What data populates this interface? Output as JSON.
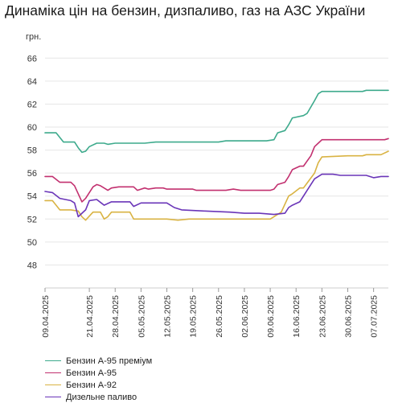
{
  "chart_data": {
    "type": "line",
    "title": "Динаміка цін на бензин, дизпаливо, газ на АЗС України",
    "ylabel": "грн.",
    "xlabel": "",
    "ylim": [
      46,
      67
    ],
    "yticks": [
      48,
      50,
      52,
      54,
      56,
      58,
      60,
      62,
      64,
      66
    ],
    "xlim": [
      "2025-04-09",
      "2025-07-11"
    ],
    "xticks": [
      "09.04.2025",
      "21.04.2025",
      "28.04.2025",
      "05.05.2025",
      "12.05.2025",
      "19.05.2025",
      "26.05.2025",
      "02.06.2025",
      "09.06.2025",
      "16.06.2025",
      "23.06.2025",
      "30.06.2025",
      "07.07.2025"
    ],
    "grid": "horizontal",
    "legend_position": "bottom-left",
    "series": [
      {
        "name": "Бензин А-95 преміум",
        "color": "#3daa8c",
        "points": [
          [
            "2025-04-09",
            59.5
          ],
          [
            "2025-04-12",
            59.5
          ],
          [
            "2025-04-14",
            58.7
          ],
          [
            "2025-04-17",
            58.7
          ],
          [
            "2025-04-18",
            58.2
          ],
          [
            "2025-04-19",
            57.8
          ],
          [
            "2025-04-20",
            57.9
          ],
          [
            "2025-04-21",
            58.3
          ],
          [
            "2025-04-23",
            58.6
          ],
          [
            "2025-04-25",
            58.6
          ],
          [
            "2025-04-26",
            58.5
          ],
          [
            "2025-04-28",
            58.6
          ],
          [
            "2025-05-04",
            58.6
          ],
          [
            "2025-05-06",
            58.6
          ],
          [
            "2025-05-09",
            58.7
          ],
          [
            "2025-05-12",
            58.7
          ],
          [
            "2025-05-19",
            58.7
          ],
          [
            "2025-05-26",
            58.7
          ],
          [
            "2025-05-28",
            58.8
          ],
          [
            "2025-06-04",
            58.8
          ],
          [
            "2025-06-08",
            58.8
          ],
          [
            "2025-06-10",
            58.9
          ],
          [
            "2025-06-11",
            59.5
          ],
          [
            "2025-06-13",
            59.7
          ],
          [
            "2025-06-14",
            60.2
          ],
          [
            "2025-06-15",
            60.8
          ],
          [
            "2025-06-18",
            61.0
          ],
          [
            "2025-06-19",
            61.2
          ],
          [
            "2025-06-21",
            62.3
          ],
          [
            "2025-06-22",
            62.9
          ],
          [
            "2025-06-23",
            63.1
          ],
          [
            "2025-06-30",
            63.1
          ],
          [
            "2025-07-04",
            63.1
          ],
          [
            "2025-07-05",
            63.2
          ],
          [
            "2025-07-11",
            63.2
          ]
        ]
      },
      {
        "name": "Бензин А-95",
        "color": "#c2306f",
        "points": [
          [
            "2025-04-09",
            55.7
          ],
          [
            "2025-04-11",
            55.7
          ],
          [
            "2025-04-13",
            55.2
          ],
          [
            "2025-04-16",
            55.2
          ],
          [
            "2025-04-17",
            54.9
          ],
          [
            "2025-04-18",
            54.2
          ],
          [
            "2025-04-19",
            53.5
          ],
          [
            "2025-04-20",
            53.8
          ],
          [
            "2025-04-22",
            54.8
          ],
          [
            "2025-04-23",
            55.0
          ],
          [
            "2025-04-24",
            54.9
          ],
          [
            "2025-04-26",
            54.5
          ],
          [
            "2025-04-27",
            54.7
          ],
          [
            "2025-04-29",
            54.8
          ],
          [
            "2025-05-03",
            54.8
          ],
          [
            "2025-05-04",
            54.5
          ],
          [
            "2025-05-06",
            54.7
          ],
          [
            "2025-05-07",
            54.6
          ],
          [
            "2025-05-09",
            54.7
          ],
          [
            "2025-05-11",
            54.7
          ],
          [
            "2025-05-12",
            54.6
          ],
          [
            "2025-05-19",
            54.6
          ],
          [
            "2025-05-20",
            54.5
          ],
          [
            "2025-05-28",
            54.5
          ],
          [
            "2025-05-30",
            54.6
          ],
          [
            "2025-06-01",
            54.5
          ],
          [
            "2025-06-09",
            54.5
          ],
          [
            "2025-06-10",
            54.6
          ],
          [
            "2025-06-11",
            55.0
          ],
          [
            "2025-06-13",
            55.2
          ],
          [
            "2025-06-14",
            55.7
          ],
          [
            "2025-06-15",
            56.3
          ],
          [
            "2025-06-17",
            56.6
          ],
          [
            "2025-06-18",
            56.6
          ],
          [
            "2025-06-20",
            57.5
          ],
          [
            "2025-06-21",
            58.3
          ],
          [
            "2025-06-22",
            58.6
          ],
          [
            "2025-06-23",
            58.9
          ],
          [
            "2025-06-30",
            58.9
          ],
          [
            "2025-07-10",
            58.9
          ],
          [
            "2025-07-11",
            59.0
          ]
        ]
      },
      {
        "name": "Бензин А-92",
        "color": "#d9b343",
        "points": [
          [
            "2025-04-09",
            53.6
          ],
          [
            "2025-04-11",
            53.6
          ],
          [
            "2025-04-13",
            52.8
          ],
          [
            "2025-04-16",
            52.8
          ],
          [
            "2025-04-18",
            52.7
          ],
          [
            "2025-04-19",
            52.2
          ],
          [
            "2025-04-20",
            51.9
          ],
          [
            "2025-04-22",
            52.6
          ],
          [
            "2025-04-24",
            52.6
          ],
          [
            "2025-04-25",
            52.0
          ],
          [
            "2025-04-26",
            52.2
          ],
          [
            "2025-04-27",
            52.6
          ],
          [
            "2025-04-29",
            52.6
          ],
          [
            "2025-05-02",
            52.6
          ],
          [
            "2025-05-03",
            52.0
          ],
          [
            "2025-05-05",
            52.0
          ],
          [
            "2025-05-12",
            52.0
          ],
          [
            "2025-05-15",
            51.9
          ],
          [
            "2025-05-18",
            52.0
          ],
          [
            "2025-05-26",
            52.0
          ],
          [
            "2025-06-09",
            52.0
          ],
          [
            "2025-06-10",
            52.2
          ],
          [
            "2025-06-12",
            52.6
          ],
          [
            "2025-06-14",
            54.0
          ],
          [
            "2025-06-15",
            54.2
          ],
          [
            "2025-06-17",
            54.7
          ],
          [
            "2025-06-18",
            54.7
          ],
          [
            "2025-06-21",
            56.0
          ],
          [
            "2025-06-22",
            56.9
          ],
          [
            "2025-06-23",
            57.4
          ],
          [
            "2025-06-30",
            57.5
          ],
          [
            "2025-07-04",
            57.5
          ],
          [
            "2025-07-05",
            57.6
          ],
          [
            "2025-07-09",
            57.6
          ],
          [
            "2025-07-11",
            57.9
          ]
        ]
      },
      {
        "name": "Дизельне паливо",
        "color": "#6a35b8",
        "points": [
          [
            "2025-04-09",
            54.4
          ],
          [
            "2025-04-11",
            54.3
          ],
          [
            "2025-04-13",
            53.8
          ],
          [
            "2025-04-16",
            53.6
          ],
          [
            "2025-04-17",
            53.4
          ],
          [
            "2025-04-18",
            52.2
          ],
          [
            "2025-04-20",
            52.8
          ],
          [
            "2025-04-21",
            53.6
          ],
          [
            "2025-04-23",
            53.7
          ],
          [
            "2025-04-25",
            53.2
          ],
          [
            "2025-04-27",
            53.5
          ],
          [
            "2025-05-02",
            53.5
          ],
          [
            "2025-05-03",
            53.1
          ],
          [
            "2025-05-05",
            53.4
          ],
          [
            "2025-05-12",
            53.4
          ],
          [
            "2025-05-14",
            53.0
          ],
          [
            "2025-05-16",
            52.8
          ],
          [
            "2025-05-22",
            52.7
          ],
          [
            "2025-05-29",
            52.6
          ],
          [
            "2025-06-02",
            52.5
          ],
          [
            "2025-06-06",
            52.5
          ],
          [
            "2025-06-10",
            52.4
          ],
          [
            "2025-06-13",
            52.5
          ],
          [
            "2025-06-14",
            53.0
          ],
          [
            "2025-06-15",
            53.2
          ],
          [
            "2025-06-17",
            53.5
          ],
          [
            "2025-06-19",
            54.5
          ],
          [
            "2025-06-21",
            55.5
          ],
          [
            "2025-06-23",
            55.9
          ],
          [
            "2025-06-26",
            55.9
          ],
          [
            "2025-06-28",
            55.8
          ],
          [
            "2025-07-05",
            55.8
          ],
          [
            "2025-07-07",
            55.6
          ],
          [
            "2025-07-09",
            55.7
          ],
          [
            "2025-07-11",
            55.7
          ]
        ]
      }
    ]
  }
}
